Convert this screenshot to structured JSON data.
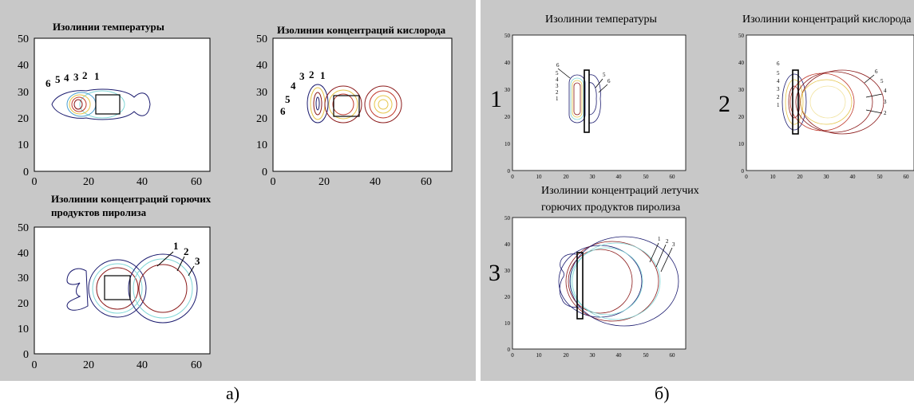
{
  "left_panel": {
    "caption": "а)",
    "plots": [
      {
        "title": "Изолинии температуры",
        "labels": [
          "6",
          "5",
          "4",
          "3",
          "2",
          "1"
        ]
      },
      {
        "title": "Изолинии концентраций кислорода",
        "labels": [
          "3",
          "2",
          "1",
          "4",
          "5",
          "6"
        ]
      },
      {
        "title_line1": "Изолинии концентраций горючих",
        "title_line2": "продуктов пиролиза",
        "labels": [
          "1",
          "2",
          "3"
        ]
      }
    ]
  },
  "right_panel": {
    "caption": "б)",
    "plots": [
      {
        "number": "1",
        "title": "Изолинии температуры",
        "labels": [
          "6",
          "5",
          "4",
          "3",
          "2",
          "1",
          "5",
          "6"
        ]
      },
      {
        "number": "2",
        "title": "Изолинии концентраций кислорода",
        "labels": [
          "6",
          "5",
          "4",
          "3",
          "2",
          "1",
          "6",
          "5",
          "4",
          "3",
          "2"
        ]
      },
      {
        "number": "3",
        "title_line1": "Изолинии концентраций летучих",
        "title_line2": "горючих продуктов пиролиза",
        "labels": [
          "1",
          "2",
          "3"
        ]
      }
    ]
  },
  "colors": {
    "panel_bg": "#c8c8c8",
    "isolines": [
      "#1a1a6e",
      "#8b1a1a",
      "#e6c54a",
      "#4aa0d0",
      "#7fd6d6",
      "#c0392b"
    ]
  },
  "chart_data": [
    {
      "type": "contour",
      "title": "Изолинии температуры",
      "xlim": [
        0,
        65
      ],
      "ylim": [
        0,
        50
      ],
      "xticks": [
        0,
        20,
        40,
        60
      ],
      "yticks": [
        0,
        10,
        20,
        30,
        40,
        50
      ],
      "series": [
        {
          "name": "1"
        },
        {
          "name": "2"
        },
        {
          "name": "3"
        },
        {
          "name": "4"
        },
        {
          "name": "5"
        },
        {
          "name": "6"
        }
      ]
    },
    {
      "type": "contour",
      "title": "Изолинии концентраций кислорода",
      "xlim": [
        0,
        65
      ],
      "ylim": [
        0,
        50
      ],
      "xticks": [
        0,
        20,
        40,
        60
      ],
      "yticks": [
        0,
        10,
        20,
        30,
        40,
        50
      ],
      "series": [
        {
          "name": "1"
        },
        {
          "name": "2"
        },
        {
          "name": "3"
        },
        {
          "name": "4"
        },
        {
          "name": "5"
        },
        {
          "name": "6"
        }
      ]
    },
    {
      "type": "contour",
      "title": "Изолинии концентраций горючих продуктов пиролиза",
      "xlim": [
        0,
        65
      ],
      "ylim": [
        0,
        50
      ],
      "xticks": [
        0,
        20,
        40,
        60
      ],
      "yticks": [
        0,
        10,
        20,
        30,
        40,
        50
      ],
      "series": [
        {
          "name": "1"
        },
        {
          "name": "2"
        },
        {
          "name": "3"
        }
      ]
    },
    {
      "type": "contour",
      "title": "Изолинии температуры",
      "xlim": [
        0,
        65
      ],
      "ylim": [
        0,
        50
      ],
      "xticks": [
        0,
        10,
        20,
        30,
        40,
        50,
        60
      ],
      "yticks": [
        0,
        10,
        20,
        30,
        40,
        50
      ]
    },
    {
      "type": "contour",
      "title": "Изолинии концентраций кислорода",
      "xlim": [
        0,
        65
      ],
      "ylim": [
        0,
        50
      ],
      "xticks": [
        0,
        10,
        20,
        30,
        40,
        50,
        60
      ],
      "yticks": [
        0,
        10,
        20,
        30,
        40,
        50
      ]
    },
    {
      "type": "contour",
      "title": "Изолинии концентраций летучих горючих продуктов пиролиза",
      "xlim": [
        0,
        65
      ],
      "ylim": [
        0,
        50
      ],
      "xticks": [
        0,
        10,
        20,
        30,
        40,
        50,
        60
      ],
      "yticks": [
        0,
        10,
        20,
        30,
        40,
        50
      ]
    }
  ]
}
